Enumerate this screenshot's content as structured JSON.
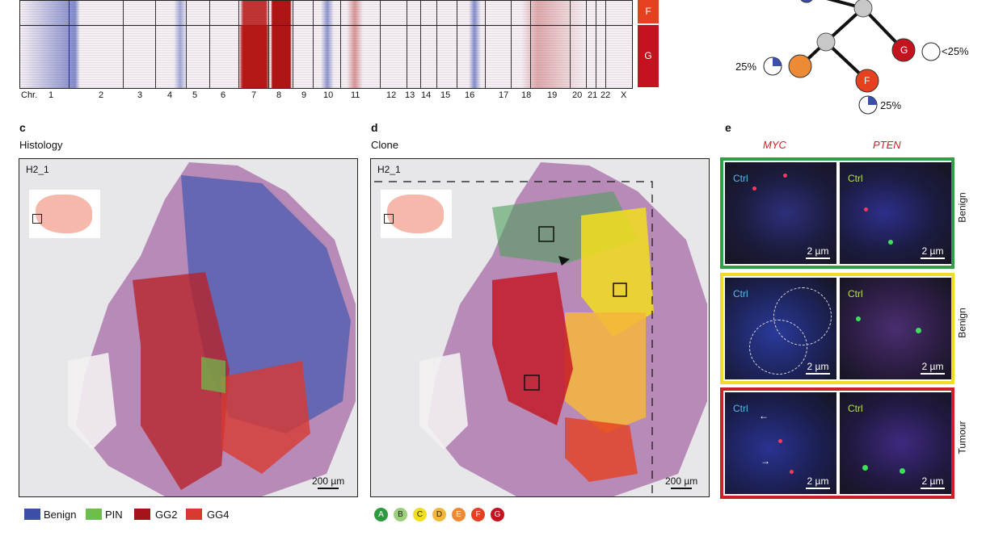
{
  "panel_a": {
    "chr_prefix": "Chr.",
    "chromosomes": [
      "1",
      "2",
      "3",
      "4",
      "5",
      "6",
      "7",
      "8",
      "9",
      "10",
      "11",
      "12",
      "13",
      "14",
      "15",
      "16",
      "17",
      "18",
      "19",
      "20",
      "21",
      "22",
      "X"
    ],
    "clone_tags": [
      "F",
      "G"
    ]
  },
  "panel_b": {
    "nodes": [
      "E",
      "F",
      "G"
    ],
    "pie_labels": [
      "25%",
      "25%",
      "<25%"
    ]
  },
  "panel_c": {
    "letter": "c",
    "title": "Histology",
    "sample": "H2_1",
    "scale": "200 µm",
    "legend": [
      {
        "label": "Benign",
        "color": "#3b4fa8"
      },
      {
        "label": "PIN",
        "color": "#6cbf4a"
      },
      {
        "label": "GG2",
        "color": "#a3151b"
      },
      {
        "label": "GG4",
        "color": "#d83a31"
      }
    ]
  },
  "panel_d": {
    "letter": "d",
    "title": "Clone",
    "sample": "H2_1",
    "scale": "200 µm",
    "clones": [
      {
        "label": "A",
        "color": "#2e9a3f"
      },
      {
        "label": "B",
        "color": "#9ccf7a"
      },
      {
        "label": "C",
        "color": "#f3de1c"
      },
      {
        "label": "D",
        "color": "#f5b63c"
      },
      {
        "label": "E",
        "color": "#ec8a35"
      },
      {
        "label": "F",
        "color": "#e5401f"
      },
      {
        "label": "G",
        "color": "#c4121f"
      }
    ]
  },
  "panel_e": {
    "letter": "e",
    "col_headers": [
      "MYC",
      "PTEN"
    ],
    "rows": [
      {
        "label": "Benign",
        "border": "#2f9e44"
      },
      {
        "label": "Benign",
        "border": "#f0dc28"
      },
      {
        "label": "Tumour",
        "border": "#c9202a"
      }
    ],
    "ctrl_label": "Ctrl",
    "scale": "2 µm"
  }
}
